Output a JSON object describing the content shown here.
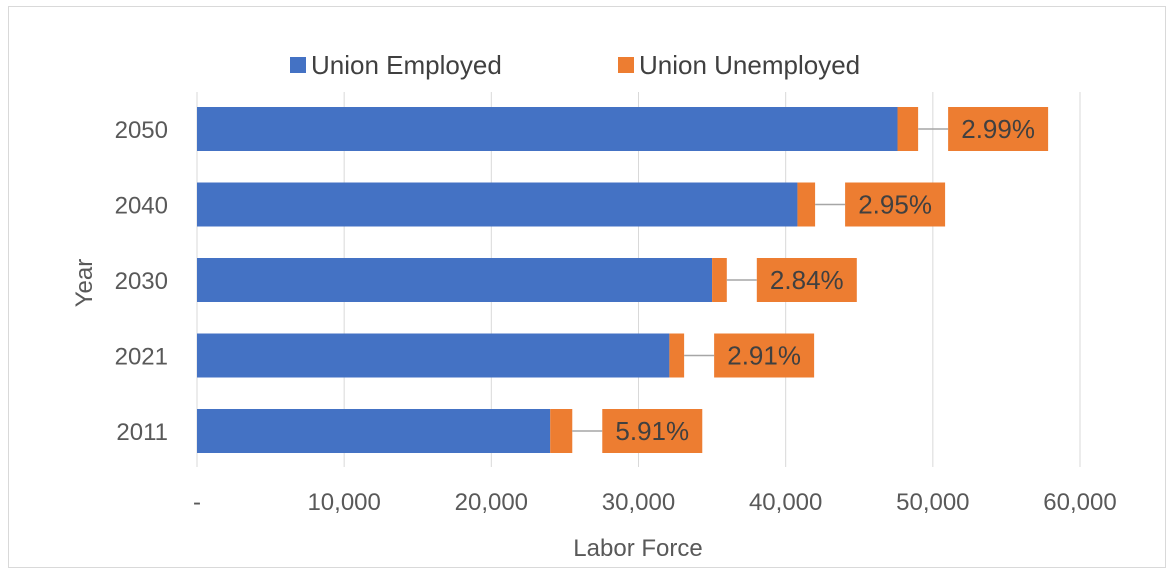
{
  "chart_data": {
    "type": "bar",
    "orientation": "horizontal",
    "stacked": true,
    "categories": [
      "2050",
      "2040",
      "2030",
      "2021",
      "2011"
    ],
    "series": [
      {
        "name": "Union Employed",
        "values": [
          47600,
          40800,
          35000,
          32100,
          24000
        ],
        "color": "#4472c4"
      },
      {
        "name": "Union Unemployed",
        "values": [
          1400,
          1200,
          1000,
          1000,
          1500
        ],
        "color": "#ed7d31"
      }
    ],
    "data_labels": [
      "2.99%",
      "2.95%",
      "2.84%",
      "2.91%",
      "5.91%"
    ],
    "xlabel": "Labor Force",
    "ylabel": "Year",
    "xlim": [
      0,
      60000
    ],
    "x_ticks": [
      {
        "value": 0,
        "label": "-"
      },
      {
        "value": 10000,
        "label": "10,000"
      },
      {
        "value": 20000,
        "label": "20,000"
      },
      {
        "value": 30000,
        "label": "30,000"
      },
      {
        "value": 40000,
        "label": "40,000"
      },
      {
        "value": 50000,
        "label": "50,000"
      },
      {
        "value": 60000,
        "label": "60,000"
      }
    ],
    "grid": "vertical",
    "legend_position": "top"
  }
}
